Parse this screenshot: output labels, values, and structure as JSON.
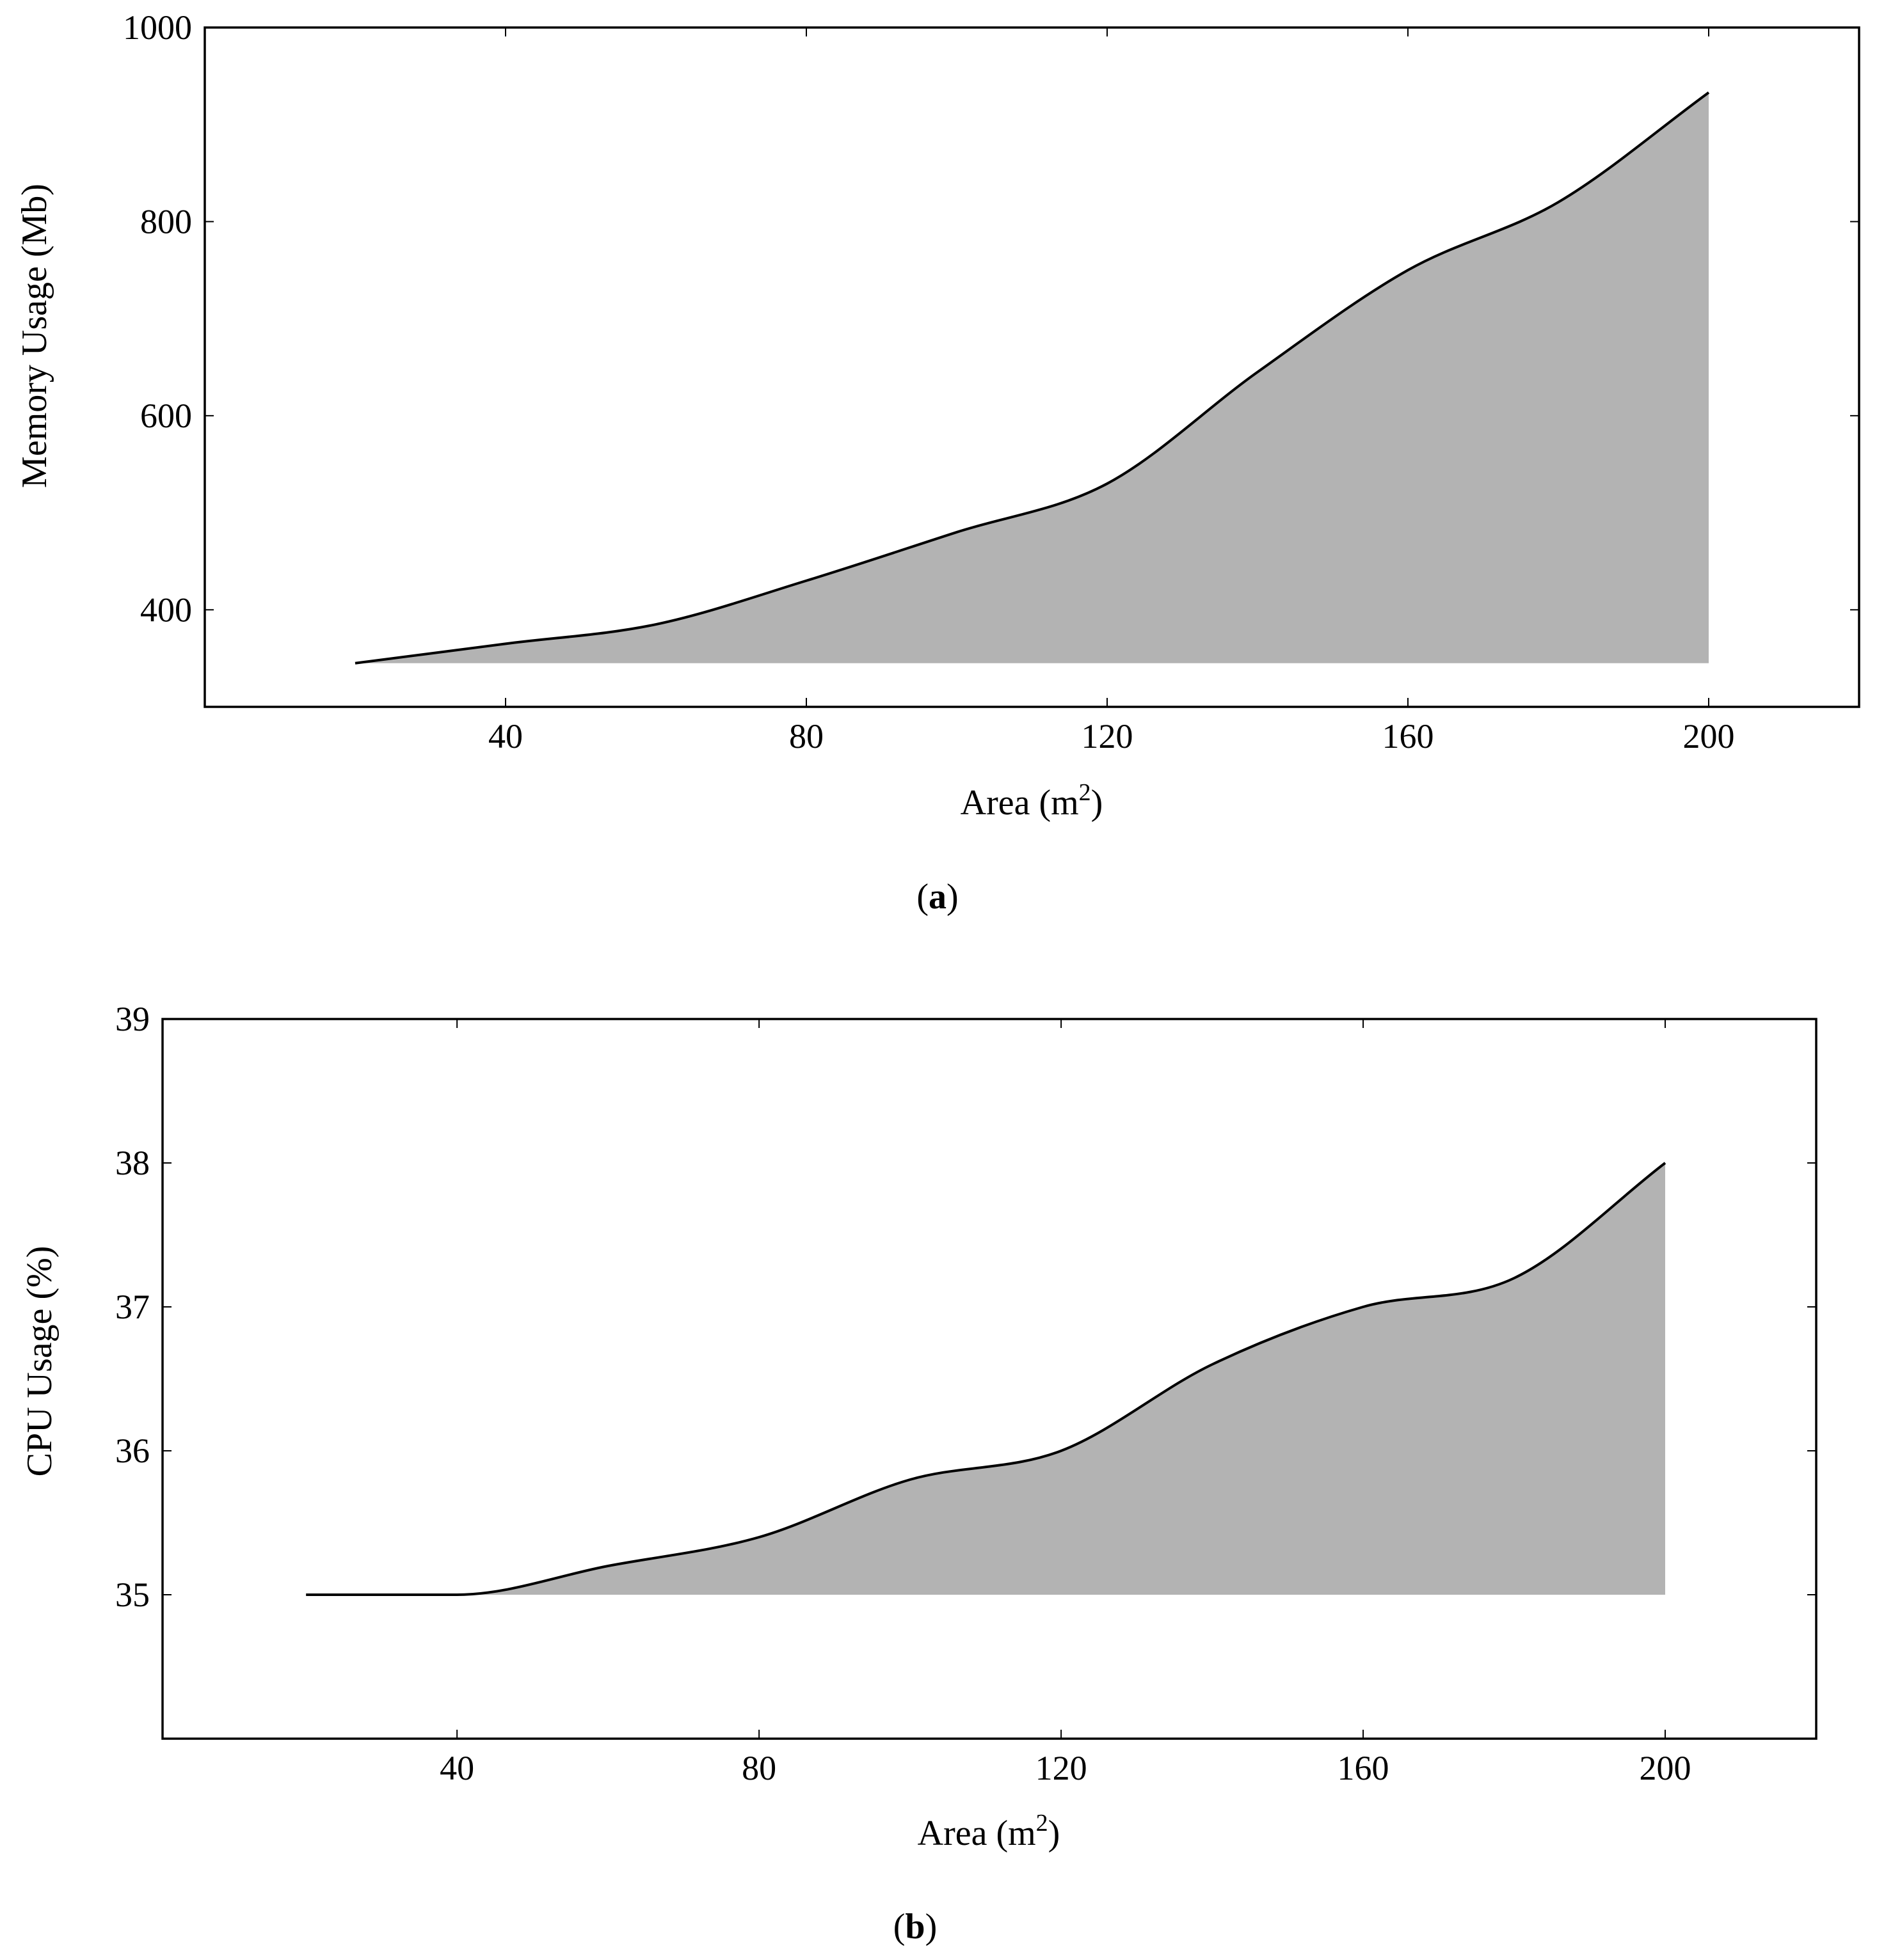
{
  "chart_data": [
    {
      "type": "area",
      "caption": "a",
      "xlabel": "Area (m",
      "xlabel_sup": "2",
      "xlabel_end": ")",
      "ylabel": "Memory Usage (Mb)",
      "xlim": [
        0,
        220
      ],
      "ylim": [
        300,
        1000
      ],
      "xticks": [
        40,
        80,
        120,
        160,
        200
      ],
      "yticks": [
        400,
        600,
        800,
        1000
      ],
      "baseline": 345,
      "series": [
        {
          "name": "Memory Usage",
          "x": [
            20,
            40,
            60,
            80,
            100,
            120,
            140,
            160,
            180,
            200
          ],
          "y": [
            345,
            365,
            385,
            430,
            480,
            530,
            645,
            750,
            820,
            933
          ]
        }
      ]
    },
    {
      "type": "area",
      "caption": "b",
      "xlabel": "Area (m",
      "xlabel_sup": "2",
      "xlabel_end": ")",
      "ylabel": "CPU Usage (%)",
      "xlim": [
        1,
        220
      ],
      "ylim": [
        34,
        39
      ],
      "xticks": [
        40,
        80,
        120,
        160,
        200
      ],
      "yticks": [
        35,
        36,
        37,
        38,
        39
      ],
      "baseline": 35,
      "series": [
        {
          "name": "CPU Usage",
          "x": [
            20,
            40,
            60,
            80,
            100,
            120,
            140,
            160,
            180,
            200
          ],
          "y": [
            35.0,
            35.0,
            35.2,
            35.4,
            35.8,
            36.0,
            36.6,
            37.0,
            37.2,
            38.0
          ]
        }
      ]
    }
  ]
}
